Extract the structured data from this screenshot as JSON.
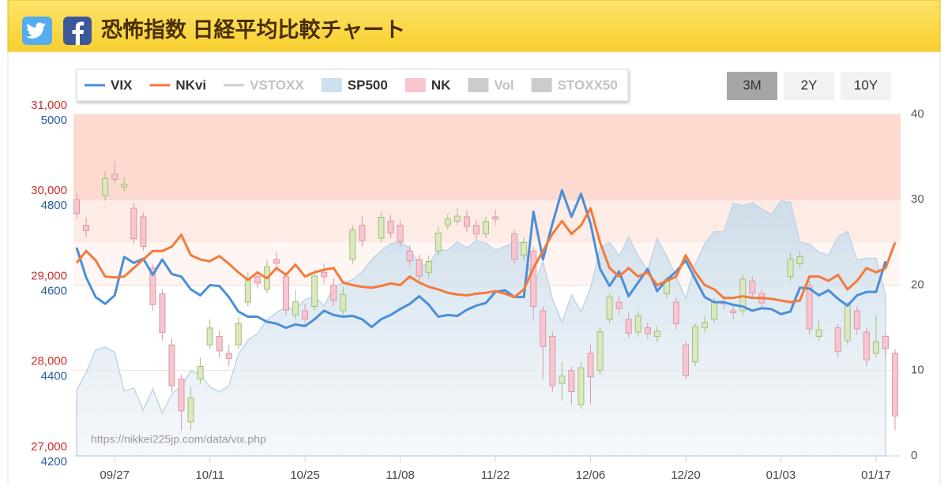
{
  "header": {
    "title": "恐怖指数 日経平均比較チャート"
  },
  "ranges": {
    "buttons": [
      "3M",
      "2Y",
      "10Y"
    ],
    "active": 0
  },
  "chart_data": {
    "type": "combo",
    "watermark": "https://nikkei225jp.com/data/vix.php",
    "categories": [
      null,
      null,
      null,
      null,
      "09/27",
      null,
      null,
      null,
      null,
      null,
      null,
      null,
      null,
      null,
      "10/11",
      null,
      null,
      null,
      null,
      null,
      null,
      null,
      null,
      null,
      "10/25",
      null,
      null,
      null,
      null,
      null,
      null,
      null,
      null,
      null,
      "11/08",
      null,
      null,
      null,
      null,
      null,
      null,
      null,
      null,
      null,
      "11/22",
      null,
      null,
      null,
      null,
      null,
      null,
      null,
      null,
      null,
      "12/06",
      null,
      null,
      null,
      null,
      null,
      null,
      null,
      null,
      null,
      "12/20",
      null,
      null,
      null,
      null,
      null,
      null,
      null,
      null,
      null,
      "01/03",
      null,
      null,
      null,
      null,
      null,
      null,
      null,
      null,
      null,
      "01/17",
      null,
      null
    ],
    "ylim": [
      27000,
      31000
    ],
    "yticks": [
      {
        "value": 27000,
        "label": "27,000"
      },
      {
        "value": 28000,
        "label": "28,000"
      },
      {
        "value": 29000,
        "label": "29,000"
      },
      {
        "value": 30000,
        "label": "30,000"
      },
      {
        "value": 31000,
        "label": "31,000"
      }
    ],
    "y3lim": [
      4200,
      5000
    ],
    "y3ticks": [
      4200,
      4400,
      4600,
      4800,
      5000
    ],
    "y2lim": [
      0,
      40
    ],
    "y2ticks": [
      0,
      10,
      20,
      30,
      40
    ],
    "zones": [
      {
        "from": 20,
        "to": 25,
        "color": "#fff6f3"
      },
      {
        "from": 25,
        "to": 30,
        "color": "#fdebe5"
      },
      {
        "from": 30,
        "to": 40,
        "color": "#fcdad0"
      }
    ],
    "series": [
      {
        "name": "VIX",
        "type": "line",
        "axis": "y2",
        "color": "#4a8fd9",
        "visible": true,
        "values": [
          24.4,
          20.9,
          18.6,
          17.8,
          18.8,
          23.3,
          22.6,
          23.1,
          21.2,
          23.0,
          21.3,
          21.0,
          19.5,
          18.8,
          20.0,
          19.9,
          18.6,
          16.9,
          16.3,
          16.3,
          15.7,
          15.5,
          15.0,
          15.4,
          15.2,
          16.0,
          17.0,
          16.5,
          16.3,
          16.4,
          16.0,
          15.1,
          16.0,
          16.5,
          17.2,
          17.8,
          18.7,
          17.7,
          16.3,
          16.5,
          16.4,
          17.1,
          17.6,
          17.9,
          19.2,
          19.4,
          18.6,
          18.6,
          28.6,
          23.0,
          27.2,
          31.1,
          28.0,
          30.7,
          27.2,
          21.9,
          19.9,
          21.6,
          18.7,
          20.3,
          21.9,
          19.3,
          20.6,
          21.6,
          22.9,
          20.7,
          18.6,
          18.0,
          18.0,
          17.7,
          17.5,
          17.0,
          17.3,
          17.2,
          16.6,
          16.9,
          19.7,
          19.6,
          18.8,
          19.4,
          18.4,
          17.6,
          18.8,
          19.2,
          19.2,
          22.8,
          null
        ]
      },
      {
        "name": "NKvi",
        "type": "line",
        "axis": "y2",
        "color": "#f47a3a",
        "visible": true,
        "values": [
          22.6,
          24.0,
          22.9,
          21.0,
          20.9,
          21.0,
          22.0,
          23.0,
          24.0,
          24.0,
          24.5,
          25.9,
          23.5,
          23.0,
          22.8,
          23.4,
          22.5,
          21.5,
          20.6,
          21.5,
          20.8,
          22.0,
          21.2,
          22.4,
          21.0,
          21.5,
          21.8,
          22.0,
          20.3,
          20.0,
          19.8,
          19.7,
          19.9,
          20.2,
          20.0,
          21.0,
          20.3,
          19.8,
          19.5,
          19.1,
          18.9,
          18.8,
          19.0,
          19.1,
          19.3,
          19.0,
          18.6,
          19.5,
          22.0,
          24.0,
          26.0,
          27.5,
          26.0,
          27.0,
          29.0,
          25.0,
          22.0,
          21.0,
          22.0,
          21.0,
          21.5,
          20.0,
          20.5,
          21.0,
          23.5,
          21.5,
          20.0,
          19.5,
          18.5,
          18.5,
          18.7,
          18.5,
          18.5,
          18.4,
          18.2,
          18.0,
          18.2,
          21.0,
          21.0,
          20.5,
          21.2,
          19.5,
          20.5,
          22.0,
          21.5,
          22.0,
          25.0
        ]
      },
      {
        "name": "VSTOXX",
        "type": "line",
        "axis": "y2",
        "color": "#cccccc",
        "visible": false
      },
      {
        "name": "SP500",
        "type": "area",
        "axis": "y3",
        "color": "#cfe0ee",
        "visible": true,
        "values": [
          4354,
          4395,
          4448,
          4455,
          4443,
          4352,
          4359,
          4307,
          4357,
          4300,
          4345,
          4363,
          4399,
          4391,
          4361,
          4350,
          4364,
          4438,
          4471,
          4486,
          4519,
          4536,
          4549,
          4544,
          4566,
          4574,
          4551,
          4596,
          4605,
          4613,
          4631,
          4660,
          4680,
          4697,
          4701,
          4686,
          4646,
          4649,
          4682,
          4682,
          4701,
          4688,
          4704,
          4698,
          4682,
          4690,
          4701,
          4701,
          4595,
          4655,
          4567,
          4513,
          4577,
          4538,
          4592,
          4686,
          4701,
          4667,
          4712,
          4669,
          4634,
          4709,
          4668,
          4620,
          4568,
          4649,
          4697,
          4725,
          4725,
          4791,
          4786,
          4793,
          4778,
          4766,
          4797,
          4794,
          4701,
          4696,
          4677,
          4670,
          4713,
          4726,
          4659,
          4663,
          4663,
          4577,
          null
        ]
      },
      {
        "name": "NK",
        "type": "candlestick",
        "axis": "y",
        "color": "#f9c6cf",
        "up_color": "#dbe8c0",
        "visible": true,
        "open": [
          30000,
          29700,
          null,
          30050,
          30300,
          30150,
          29900,
          29800,
          29200,
          28900,
          28300,
          27900,
          27400,
          27900,
          28300,
          28400,
          28200,
          28300,
          28800,
          29100,
          28950,
          29300,
          29100,
          28650,
          28700,
          28750,
          29150,
          29000,
          28700,
          29300,
          29700,
          null,
          29550,
          29750,
          29700,
          29400,
          29300,
          29150,
          29400,
          29700,
          29750,
          29800,
          29700,
          29600,
          29800,
          null,
          29600,
          29350,
          29400,
          28700,
          28400,
          27850,
          28000,
          27600,
          28200,
          28000,
          28600,
          28800,
          28600,
          28450,
          28500,
          28400,
          28900,
          28800,
          28300,
          28100,
          28500,
          28600,
          28800,
          28700,
          28700,
          29050,
          28900,
          null,
          null,
          29100,
          29250,
          29000,
          28400,
          null,
          28500,
          28350,
          28700,
          28450,
          28200,
          28400,
          28200
        ],
        "high": [
          30080,
          29790,
          null,
          30330,
          30450,
          30260,
          29960,
          29850,
          29250,
          28950,
          28380,
          27950,
          27800,
          28150,
          28600,
          28470,
          28300,
          28630,
          29150,
          29160,
          29300,
          29400,
          29150,
          28950,
          28780,
          29180,
          29250,
          29080,
          28980,
          29700,
          29800,
          null,
          29850,
          29820,
          29760,
          29470,
          29360,
          29350,
          29680,
          29830,
          29900,
          29880,
          29760,
          29800,
          29880,
          null,
          29650,
          29560,
          29450,
          28750,
          28450,
          28100,
          28050,
          28100,
          28300,
          28500,
          28900,
          28880,
          28680,
          28700,
          28560,
          28520,
          29100,
          28850,
          28350,
          28550,
          28640,
          28850,
          28870,
          28780,
          29120,
          29100,
          28950,
          null,
          null,
          29380,
          29400,
          29050,
          28600,
          null,
          28550,
          28800,
          28750,
          28500,
          28650,
          28450,
          28250
        ],
        "low": [
          29780,
          29560,
          null,
          29990,
          30200,
          30100,
          29480,
          29400,
          28700,
          28350,
          27750,
          27300,
          27300,
          27850,
          28250,
          28150,
          28050,
          28250,
          28750,
          28960,
          28900,
          29180,
          28650,
          28600,
          28520,
          28700,
          29020,
          28750,
          28650,
          29250,
          29450,
          null,
          29500,
          29550,
          29450,
          29220,
          29050,
          29080,
          29350,
          29650,
          29700,
          29620,
          29530,
          29550,
          29700,
          null,
          29250,
          29280,
          28600,
          27900,
          27750,
          27650,
          27600,
          27550,
          27600,
          27950,
          28550,
          28650,
          28380,
          28400,
          28370,
          28330,
          28850,
          28480,
          27890,
          28050,
          28450,
          28560,
          28720,
          28600,
          28650,
          28850,
          28720,
          null,
          null,
          29050,
          29200,
          28420,
          28350,
          null,
          28150,
          28300,
          28420,
          28050,
          28150,
          28150,
          27300
        ],
        "close": [
          29839,
          29639,
          null,
          30248,
          30240,
          30183,
          29544,
          29452,
          28771,
          28444,
          27822,
          27528,
          27678,
          28048,
          28498,
          28230,
          28140,
          28550,
          29068,
          29025,
          29215,
          29255,
          28708,
          28804,
          28600,
          29106,
          29098,
          28820,
          28892,
          29647,
          29520,
          null,
          29794,
          29611,
          29507,
          29285,
          29106,
          29277,
          29609,
          29776,
          29808,
          29688,
          29598,
          29745,
          29774,
          null,
          29302,
          29499,
          28751,
          28283,
          27821,
          27935,
          27753,
          28029,
          27927,
          28455,
          28860,
          28725,
          28437,
          28640,
          28432,
          28459,
          29066,
          28545,
          27937,
          28517,
          28562,
          28798,
          28782,
          28676,
          29069,
          28906,
          28791,
          null,
          null,
          29301,
          29332,
          28487,
          28478,
          null,
          28222,
          28765,
          28489,
          28124,
          28333,
          28257,
          27467
        ]
      },
      {
        "name": "Vol",
        "type": "bar",
        "color": "#cccccc",
        "visible": false
      },
      {
        "name": "STOXX50",
        "type": "area",
        "color": "#cccccc",
        "visible": false
      }
    ]
  }
}
